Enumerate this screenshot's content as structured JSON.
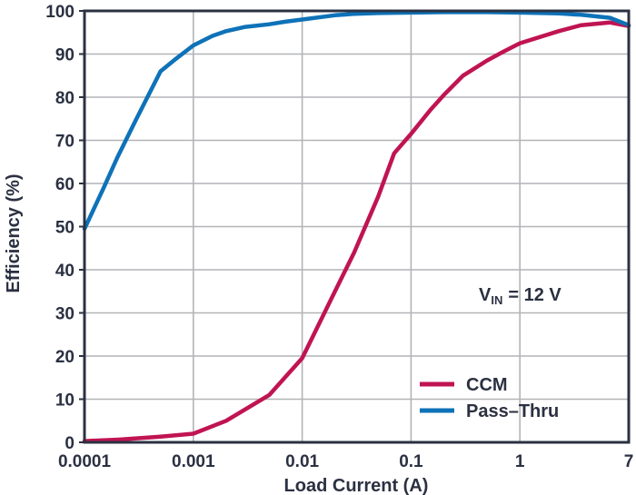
{
  "chart_data": {
    "type": "line",
    "title": "",
    "xlabel": "Load Current (A)",
    "ylabel": "Efficiency (%)",
    "x_scale": "log",
    "xlim": [
      0.0001,
      7
    ],
    "ylim": [
      0,
      100
    ],
    "x_ticks": [
      0.0001,
      0.001,
      0.01,
      0.1,
      1,
      7
    ],
    "x_tick_labels": [
      "0.0001",
      "0.001",
      "0.01",
      "0.1",
      "1",
      "7"
    ],
    "y_ticks": [
      0,
      10,
      20,
      30,
      40,
      50,
      60,
      70,
      80,
      90,
      100
    ],
    "y_tick_labels": [
      "0",
      "10",
      "20",
      "30",
      "40",
      "50",
      "60",
      "70",
      "80",
      "90",
      "100"
    ],
    "grid": true,
    "legend_position": "lower-right",
    "annotation": {
      "main": "V",
      "sub": "IN",
      "rest": "= 12 V"
    },
    "series": [
      {
        "name": "CCM",
        "color": "#c01452",
        "points": [
          [
            0.0001,
            0.3
          ],
          [
            0.0002,
            0.6
          ],
          [
            0.0005,
            1.3
          ],
          [
            0.001,
            2
          ],
          [
            0.002,
            5
          ],
          [
            0.005,
            11
          ],
          [
            0.01,
            19.5
          ],
          [
            0.02,
            35
          ],
          [
            0.03,
            44
          ],
          [
            0.05,
            57
          ],
          [
            0.07,
            67
          ],
          [
            0.1,
            71.5
          ],
          [
            0.15,
            77
          ],
          [
            0.2,
            80.5
          ],
          [
            0.3,
            85
          ],
          [
            0.5,
            88.5
          ],
          [
            0.7,
            90.5
          ],
          [
            1,
            92.5
          ],
          [
            2,
            95.3
          ],
          [
            3,
            96.7
          ],
          [
            5,
            97.3
          ],
          [
            7,
            96.5
          ]
        ]
      },
      {
        "name": "Pass–Thru",
        "color": "#0e72b8",
        "points": [
          [
            0.0001,
            49.5
          ],
          [
            0.00015,
            59
          ],
          [
            0.0002,
            66
          ],
          [
            0.0003,
            75
          ],
          [
            0.0005,
            86
          ],
          [
            0.0007,
            89
          ],
          [
            0.001,
            92
          ],
          [
            0.0015,
            94.2
          ],
          [
            0.002,
            95.3
          ],
          [
            0.003,
            96.3
          ],
          [
            0.005,
            96.9
          ],
          [
            0.007,
            97.5
          ],
          [
            0.01,
            98
          ],
          [
            0.02,
            99
          ],
          [
            0.03,
            99.3
          ],
          [
            0.05,
            99.5
          ],
          [
            0.1,
            99.6
          ],
          [
            0.2,
            99.7
          ],
          [
            0.5,
            99.7
          ],
          [
            1,
            99.6
          ],
          [
            2,
            99.4
          ],
          [
            3,
            99.1
          ],
          [
            5,
            98.4
          ],
          [
            7,
            96.7
          ]
        ]
      }
    ],
    "colors": {
      "axis": "#2b3142",
      "grid": "#b2b4b7",
      "text": "#2b3142",
      "background": "#ffffff"
    }
  }
}
